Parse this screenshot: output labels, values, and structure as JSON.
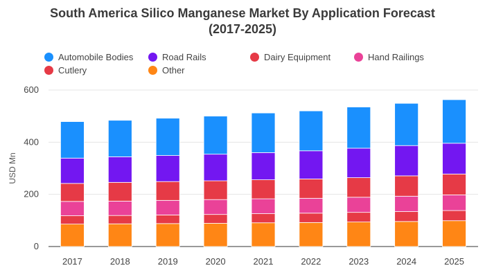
{
  "chart_data": {
    "type": "bar",
    "stacked": true,
    "title_lines": [
      "South America Silico Manganese Market By Application Forecast",
      "(2017-2025)"
    ],
    "ylabel": "USD Mn",
    "xlabel": "",
    "ylim": [
      0,
      600
    ],
    "yticks": [
      0,
      200,
      400,
      600
    ],
    "grid": true,
    "legend_position": "top",
    "categories": [
      "2017",
      "2018",
      "2019",
      "2020",
      "2021",
      "2022",
      "2023",
      "2024",
      "2025"
    ],
    "series": [
      {
        "name": "Other",
        "color": "#ff8615",
        "values": [
          86,
          87,
          88,
          89,
          91,
          92,
          94,
          96,
          99
        ]
      },
      {
        "name": "Cutlery",
        "color": "#e63a46",
        "values": [
          32,
          32,
          33,
          34,
          35,
          36,
          37,
          38,
          39
        ]
      },
      {
        "name": "Hand Railings",
        "color": "#ea4298",
        "values": [
          55,
          55,
          56,
          57,
          57,
          57,
          58,
          59,
          60
        ]
      },
      {
        "name": "Dairy Equipment",
        "color": "#e63a46",
        "values": [
          69,
          72,
          72,
          72,
          73,
          74,
          75,
          78,
          80
        ]
      },
      {
        "name": "Road Rails",
        "color": "#7317f1",
        "values": [
          97,
          98,
          100,
          102,
          104,
          108,
          113,
          116,
          118
        ]
      },
      {
        "name": "Automobile Bodies",
        "color": "#1a90fe",
        "values": [
          140,
          140,
          143,
          146,
          152,
          153,
          158,
          162,
          167
        ]
      }
    ],
    "legend": [
      {
        "label": "Automobile Bodies",
        "color": "#1a90fe"
      },
      {
        "label": "Road Rails",
        "color": "#7317f1"
      },
      {
        "label": "Dairy Equipment",
        "color": "#e63a46"
      },
      {
        "label": "Hand Railings",
        "color": "#ea4298"
      },
      {
        "label": "Cutlery",
        "color": "#e63a46"
      },
      {
        "label": "Other",
        "color": "#ff8615"
      }
    ]
  }
}
